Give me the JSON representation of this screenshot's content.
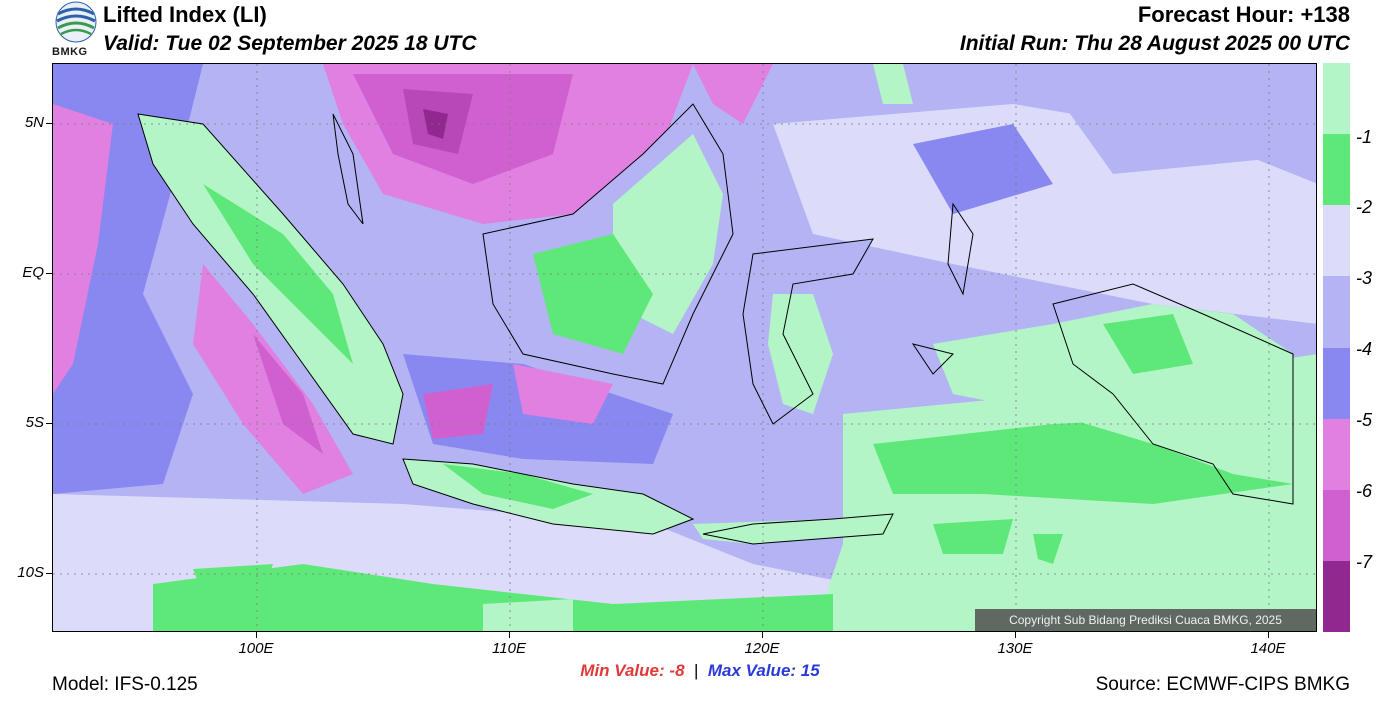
{
  "header": {
    "title": "Lifted Index (LI)",
    "valid": "Valid: Tue 02 September 2025 18 UTC",
    "forecast_hour": "Forecast Hour: +138",
    "initial_run": "Initial Run: Thu 28 August 2025 00 UTC",
    "logo_text": "BMKG"
  },
  "axes": {
    "y_labels": [
      "5N",
      "EQ",
      "5S",
      "10S"
    ],
    "x_labels": [
      "100E",
      "110E",
      "120E",
      "130E",
      "140E"
    ]
  },
  "colorbar": {
    "labels": [
      "-1",
      "-2",
      "-3",
      "-4",
      "-5",
      "-6",
      "-7"
    ],
    "colors": [
      "#b4f5c8",
      "#5fe87a",
      "#dcdcfa",
      "#b4b4f5",
      "#8888f0",
      "#e080e0",
      "#d060d0",
      "#b848b8",
      "#902890"
    ]
  },
  "stats": {
    "min_label": "Min Value:",
    "min_value": "-8",
    "max_label": "Max Value:",
    "max_value": "15"
  },
  "footer": {
    "model": "Model: IFS-0.125",
    "source": "Source: ECMWF-CIPS BMKG",
    "copyright": "Copyright Sub Bidang Prediksi Cuaca BMKG, 2025"
  }
}
